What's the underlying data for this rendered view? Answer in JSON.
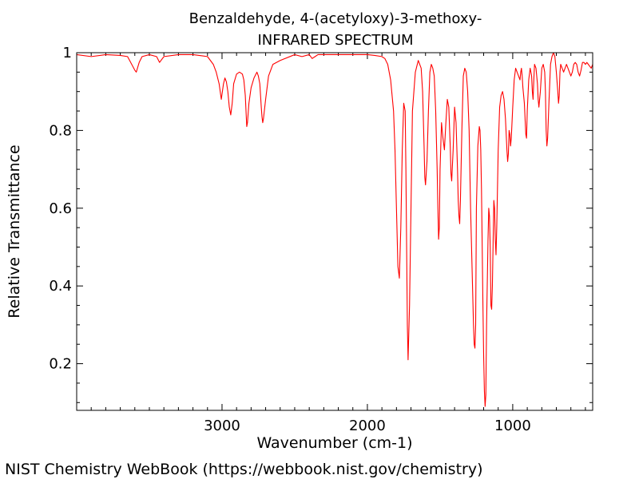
{
  "chart_data": {
    "type": "line",
    "title": "Benzaldehyde, 4-(acetyloxy)-3-methoxy-",
    "subtitle": "INFRARED SPECTRUM",
    "xlabel": "Wavenumber (cm-1)",
    "ylabel": "Relative Transmittance",
    "xlim": [
      4000,
      450
    ],
    "ylim": [
      0.08,
      1.0
    ],
    "x_ticks": [
      3000,
      2000,
      1000
    ],
    "x_tick_labels": [
      "3000",
      "2000",
      "1000"
    ],
    "y_ticks": [
      0.2,
      0.4,
      0.6,
      0.8,
      1.0
    ],
    "y_tick_labels": [
      "0.2",
      "0.4",
      "0.6",
      "0.8",
      "1"
    ],
    "grid": false,
    "line_color": "#ff0000",
    "series": [
      {
        "x": [
          4000,
          3900,
          3800,
          3700,
          3650,
          3600,
          3590,
          3570,
          3550,
          3500,
          3450,
          3430,
          3400,
          3300,
          3200,
          3100,
          3060,
          3040,
          3020,
          3005,
          2990,
          2980,
          2970,
          2960,
          2950,
          2940,
          2930,
          2920,
          2900,
          2880,
          2860,
          2850,
          2840,
          2835,
          2830,
          2825,
          2815,
          2800,
          2780,
          2760,
          2750,
          2740,
          2730,
          2725,
          2720,
          2715,
          2700,
          2680,
          2650,
          2600,
          2500,
          2450,
          2400,
          2380,
          2360,
          2340,
          2300,
          2200,
          2100,
          2000,
          1950,
          1900,
          1880,
          1860,
          1840,
          1820,
          1810,
          1800,
          1790,
          1780,
          1770,
          1760,
          1750,
          1740,
          1735,
          1730,
          1725,
          1720,
          1710,
          1700,
          1690,
          1670,
          1650,
          1630,
          1620,
          1610,
          1605,
          1600,
          1590,
          1580,
          1570,
          1560,
          1550,
          1540,
          1530,
          1520,
          1515,
          1510,
          1505,
          1500,
          1490,
          1480,
          1470,
          1460,
          1450,
          1440,
          1430,
          1425,
          1420,
          1410,
          1400,
          1390,
          1380,
          1375,
          1370,
          1365,
          1360,
          1350,
          1340,
          1330,
          1320,
          1310,
          1300,
          1290,
          1280,
          1270,
          1265,
          1260,
          1255,
          1250,
          1240,
          1230,
          1225,
          1220,
          1215,
          1210,
          1205,
          1200,
          1195,
          1190,
          1185,
          1180,
          1170,
          1165,
          1160,
          1155,
          1150,
          1145,
          1140,
          1130,
          1125,
          1120,
          1115,
          1110,
          1100,
          1090,
          1080,
          1070,
          1060,
          1050,
          1040,
          1035,
          1030,
          1025,
          1020,
          1015,
          1010,
          1000,
          990,
          980,
          970,
          960,
          950,
          945,
          940,
          935,
          930,
          920,
          910,
          905,
          900,
          890,
          880,
          870,
          865,
          860,
          855,
          850,
          840,
          830,
          825,
          820,
          810,
          800,
          790,
          780,
          775,
          770,
          765,
          760,
          750,
          740,
          730,
          720,
          710,
          700,
          690,
          685,
          680,
          675,
          670,
          660,
          650,
          640,
          630,
          620,
          610,
          600,
          590,
          580,
          570,
          560,
          550,
          540,
          530,
          520,
          510,
          500,
          490,
          480,
          470,
          460,
          450
        ],
        "y": [
          0.995,
          0.99,
          0.995,
          0.993,
          0.99,
          0.955,
          0.95,
          0.975,
          0.99,
          0.995,
          0.99,
          0.975,
          0.99,
          0.995,
          0.995,
          0.99,
          0.97,
          0.95,
          0.92,
          0.88,
          0.92,
          0.935,
          0.925,
          0.9,
          0.86,
          0.84,
          0.87,
          0.92,
          0.945,
          0.95,
          0.945,
          0.93,
          0.89,
          0.85,
          0.81,
          0.82,
          0.87,
          0.91,
          0.935,
          0.95,
          0.94,
          0.92,
          0.86,
          0.835,
          0.82,
          0.83,
          0.88,
          0.94,
          0.97,
          0.98,
          0.995,
          0.99,
          0.995,
          0.985,
          0.99,
          0.995,
          0.995,
          0.995,
          0.995,
          0.995,
          0.993,
          0.99,
          0.985,
          0.97,
          0.93,
          0.85,
          0.75,
          0.6,
          0.45,
          0.42,
          0.55,
          0.75,
          0.87,
          0.85,
          0.7,
          0.5,
          0.3,
          0.21,
          0.35,
          0.6,
          0.85,
          0.95,
          0.98,
          0.96,
          0.9,
          0.76,
          0.68,
          0.66,
          0.72,
          0.85,
          0.95,
          0.97,
          0.96,
          0.94,
          0.85,
          0.7,
          0.6,
          0.52,
          0.55,
          0.7,
          0.82,
          0.78,
          0.75,
          0.82,
          0.88,
          0.86,
          0.76,
          0.69,
          0.67,
          0.75,
          0.86,
          0.82,
          0.7,
          0.62,
          0.58,
          0.56,
          0.62,
          0.8,
          0.94,
          0.96,
          0.95,
          0.9,
          0.8,
          0.6,
          0.45,
          0.3,
          0.25,
          0.24,
          0.3,
          0.6,
          0.76,
          0.81,
          0.8,
          0.75,
          0.65,
          0.5,
          0.35,
          0.22,
          0.13,
          0.09,
          0.12,
          0.3,
          0.52,
          0.6,
          0.58,
          0.5,
          0.35,
          0.34,
          0.4,
          0.62,
          0.6,
          0.52,
          0.48,
          0.55,
          0.75,
          0.86,
          0.89,
          0.9,
          0.88,
          0.83,
          0.75,
          0.72,
          0.74,
          0.8,
          0.79,
          0.76,
          0.78,
          0.86,
          0.93,
          0.96,
          0.95,
          0.94,
          0.93,
          0.95,
          0.96,
          0.94,
          0.91,
          0.87,
          0.79,
          0.78,
          0.85,
          0.93,
          0.96,
          0.94,
          0.9,
          0.88,
          0.93,
          0.97,
          0.96,
          0.92,
          0.88,
          0.86,
          0.9,
          0.96,
          0.97,
          0.95,
          0.9,
          0.8,
          0.76,
          0.78,
          0.88,
          0.97,
          0.99,
          1.0,
          0.99,
          0.95,
          0.9,
          0.87,
          0.89,
          0.95,
          0.97,
          0.96,
          0.95,
          0.96,
          0.97,
          0.96,
          0.95,
          0.94,
          0.95,
          0.97,
          0.975,
          0.97,
          0.95,
          0.94,
          0.955,
          0.975,
          0.975,
          0.97,
          0.975,
          0.97,
          0.965,
          0.96,
          0.97
        ]
      }
    ]
  },
  "footer": {
    "source": "NIST Chemistry WebBook (https://webbook.nist.gov/chemistry)"
  }
}
